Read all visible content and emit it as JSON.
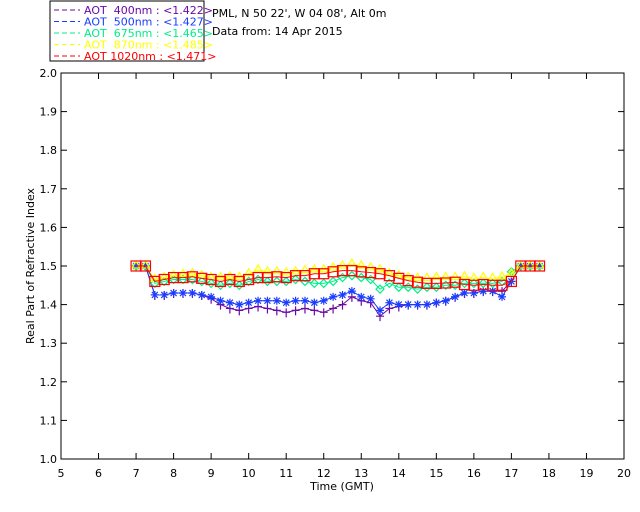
{
  "header": {
    "site": "PML, N 50 22', W 04 08', Alt 0m",
    "date": "Data from: 14 Apr 2015"
  },
  "chart_data": {
    "type": "line",
    "xlabel": "Time (GMT)",
    "ylabel": "Real Part of Refractive Index",
    "xlim": [
      5,
      20
    ],
    "ylim": [
      1.0,
      2.0
    ],
    "xticks": [
      "5",
      "6",
      "7",
      "8",
      "9",
      "10",
      "11",
      "12",
      "13",
      "14",
      "15",
      "16",
      "17",
      "18",
      "19",
      "20"
    ],
    "yticks": [
      "1.0",
      "1.1",
      "1.2",
      "1.3",
      "1.4",
      "1.5",
      "1.6",
      "1.7",
      "1.8",
      "1.9",
      "2.0"
    ],
    "legend_placement": "top-left outside",
    "x": [
      7.0,
      7.25,
      7.5,
      7.75,
      8.0,
      8.25,
      8.5,
      8.75,
      9.0,
      9.25,
      9.5,
      9.75,
      10.0,
      10.25,
      10.5,
      10.75,
      11.0,
      11.25,
      11.5,
      11.75,
      12.0,
      12.25,
      12.5,
      12.75,
      13.0,
      13.25,
      13.5,
      13.75,
      14.0,
      14.25,
      14.5,
      14.75,
      15.0,
      15.25,
      15.5,
      15.75,
      16.0,
      16.25,
      16.5,
      16.75,
      17.0,
      17.25,
      17.5,
      17.75
    ],
    "series": [
      {
        "name": "AOT  400nm : <1.422>",
        "color": "#6a0aa8",
        "marker": "plus",
        "values": [
          1.5,
          1.5,
          1.425,
          1.425,
          1.43,
          1.43,
          1.43,
          1.425,
          1.415,
          1.4,
          1.39,
          1.385,
          1.39,
          1.395,
          1.39,
          1.385,
          1.38,
          1.385,
          1.39,
          1.385,
          1.38,
          1.39,
          1.4,
          1.42,
          1.41,
          1.405,
          1.37,
          1.39,
          1.395,
          1.4,
          1.4,
          1.4,
          1.405,
          1.41,
          1.42,
          1.43,
          1.43,
          1.435,
          1.435,
          1.435,
          1.46,
          1.5,
          1.5,
          1.5
        ]
      },
      {
        "name": "AOT  500nm : <1.427>",
        "color": "#1a3cff",
        "marker": "star",
        "values": [
          1.5,
          1.5,
          1.425,
          1.425,
          1.43,
          1.43,
          1.43,
          1.425,
          1.42,
          1.41,
          1.405,
          1.4,
          1.405,
          1.41,
          1.41,
          1.41,
          1.405,
          1.41,
          1.41,
          1.405,
          1.41,
          1.42,
          1.425,
          1.435,
          1.42,
          1.415,
          1.385,
          1.405,
          1.4,
          1.4,
          1.4,
          1.4,
          1.405,
          1.41,
          1.42,
          1.43,
          1.43,
          1.435,
          1.435,
          1.42,
          1.46,
          1.5,
          1.5,
          1.5
        ]
      },
      {
        "name": "AOT  675nm : <1.465>",
        "color": "#00ee88",
        "marker": "diamond",
        "values": [
          1.5,
          1.5,
          1.455,
          1.46,
          1.465,
          1.465,
          1.465,
          1.46,
          1.455,
          1.45,
          1.455,
          1.45,
          1.46,
          1.465,
          1.46,
          1.46,
          1.46,
          1.465,
          1.46,
          1.455,
          1.455,
          1.46,
          1.47,
          1.475,
          1.47,
          1.465,
          1.44,
          1.455,
          1.445,
          1.445,
          1.44,
          1.445,
          1.445,
          1.45,
          1.45,
          1.455,
          1.455,
          1.455,
          1.455,
          1.46,
          1.485,
          1.5,
          1.5,
          1.5
        ]
      },
      {
        "name": "AOT  870nm : <1.485>",
        "color": "#ffff00",
        "marker": "triangle",
        "values": [
          1.5,
          1.5,
          1.465,
          1.47,
          1.475,
          1.478,
          1.48,
          1.475,
          1.47,
          1.47,
          1.472,
          1.47,
          1.48,
          1.49,
          1.485,
          1.485,
          1.482,
          1.485,
          1.488,
          1.49,
          1.49,
          1.495,
          1.5,
          1.505,
          1.5,
          1.495,
          1.49,
          1.48,
          1.475,
          1.47,
          1.468,
          1.468,
          1.47,
          1.47,
          1.47,
          1.472,
          1.468,
          1.47,
          1.468,
          1.472,
          1.48,
          1.5,
          1.5,
          1.5
        ]
      },
      {
        "name": "AOT 1020nm : <1.471>",
        "color": "#ff0000",
        "marker": "square",
        "values": [
          1.5,
          1.5,
          1.46,
          1.465,
          1.47,
          1.47,
          1.472,
          1.468,
          1.465,
          1.46,
          1.465,
          1.46,
          1.465,
          1.47,
          1.47,
          1.472,
          1.47,
          1.475,
          1.475,
          1.48,
          1.48,
          1.485,
          1.488,
          1.488,
          1.485,
          1.483,
          1.48,
          1.475,
          1.468,
          1.462,
          1.458,
          1.455,
          1.455,
          1.456,
          1.458,
          1.452,
          1.45,
          1.452,
          1.45,
          1.45,
          1.46,
          1.5,
          1.5,
          1.5
        ]
      }
    ]
  }
}
